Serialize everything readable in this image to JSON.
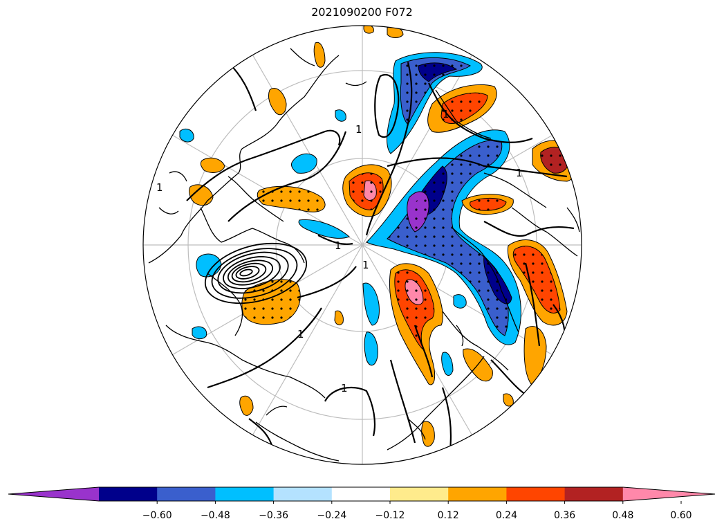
{
  "title": "2021090200 F072",
  "contour_label": "1",
  "colorbar": {
    "colors": [
      "#9933cc",
      "#00008b",
      "#3a5fcd",
      "#00bfff",
      "#b4e2ff",
      "#ffffff",
      "#ffeb8c",
      "#ffa500",
      "#ff4500",
      "#b22222",
      "#ff88aa"
    ],
    "tick_labels": [
      "−0.60",
      "−0.48",
      "−0.36",
      "−0.24",
      "−0.12",
      "0.12",
      "0.24",
      "0.36",
      "0.48",
      "0.60"
    ]
  }
}
